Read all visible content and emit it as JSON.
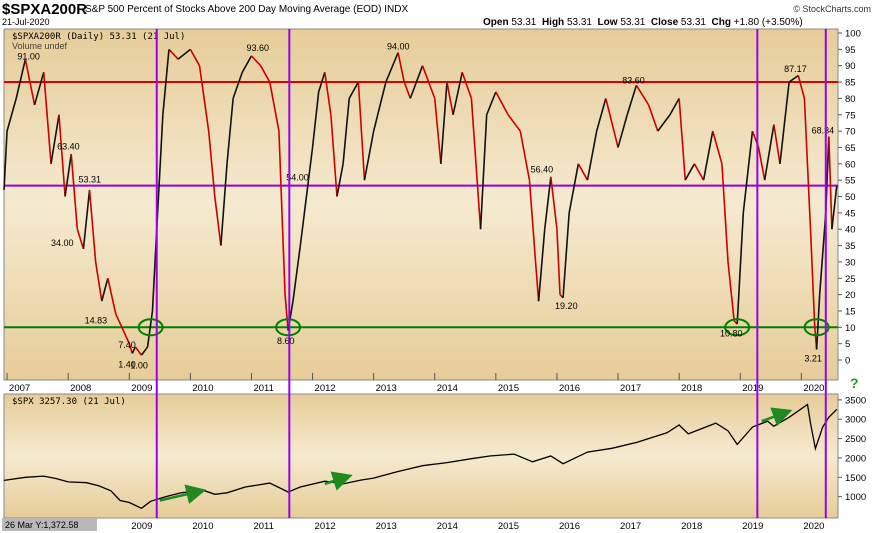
{
  "header": {
    "symbol": "$SPXA200R",
    "description": "S&P 500 Percent of Stocks Above 200 Day Moving Average (EOD)  INDX",
    "date": "21-Jul-2020",
    "quote": {
      "open_label": "Open",
      "open": "53.31",
      "high_label": "High",
      "high": "53.31",
      "low_label": "Low",
      "low": "53.31",
      "close_label": "Close",
      "close": "53.31",
      "chg_label": "Chg",
      "chg": "+1.80 (+3.50%)"
    },
    "brand": "© StockCharts.com",
    "trend_icon": "up-arrow-icon"
  },
  "colors": {
    "panel_bg": "#eedcb4",
    "panel_bg_outer": "#e6cc98",
    "line_red": "#cc0000",
    "hline_red": "#dd0000",
    "hline_purple": "#9900cc",
    "hline_green": "#008000",
    "vline_purple": "#9900ee",
    "arrow_green": "#1f8a1f",
    "question": "#1f9a1f"
  },
  "top_panel": {
    "legend": "$SPXA200R (Daily) 53.31 (21 Jul)",
    "legend2": "Volume undef",
    "y_ticks": [
      "100",
      "95",
      "90",
      "85",
      "80",
      "75",
      "70",
      "65",
      "60",
      "55",
      "50",
      "45",
      "40",
      "35",
      "30",
      "25",
      "20",
      "15",
      "10",
      "5",
      "0"
    ],
    "x_labels": [
      "2007",
      "2008",
      "2009",
      "2010",
      "2011",
      "2012",
      "2013",
      "2014",
      "2015",
      "2016",
      "2017",
      "2018",
      "2019",
      "2020"
    ],
    "question_mark": "?",
    "annotations": [
      "91.00",
      "63.40",
      "53.31",
      "34.00",
      "14.83",
      "7.40",
      "1.40",
      "1.00",
      "93.60",
      "54.00",
      "8.60",
      "94.00",
      "56.40",
      "19.20",
      "83.60",
      "10.80",
      "87.17",
      "68.34",
      "3.21"
    ]
  },
  "bottom_panel": {
    "legend": "$SPX 3257.30 (21 Jul)",
    "y_ticks": [
      "3500",
      "3000",
      "2500",
      "2000",
      "1500",
      "1000"
    ],
    "x_labels": [
      "2009",
      "2010",
      "2011",
      "2012",
      "2013",
      "2014",
      "2015",
      "2016",
      "2017",
      "2018",
      "2019",
      "2020"
    ],
    "footer": "26 Mar Y:1,372.58"
  },
  "chart_data": [
    {
      "type": "line",
      "title": "$SPXA200R (Daily) 53.31 (21 Jul)",
      "ylim": [
        -5,
        101
      ],
      "horizontal_lines": [
        85,
        53.31,
        10
      ],
      "vertical_line_dates": [
        "2009.45",
        "2011.62",
        "2019.28",
        "2020.40"
      ],
      "circled_points": [
        [
          2009.35,
          10
        ],
        [
          2011.6,
          10
        ],
        [
          2018.95,
          10
        ],
        [
          2020.25,
          10
        ]
      ],
      "series": [
        {
          "values": [
            [
              2006.95,
              52
            ],
            [
              2007.0,
              70
            ],
            [
              2007.15,
              80
            ],
            [
              2007.3,
              92
            ],
            [
              2007.45,
              78
            ],
            [
              2007.6,
              88
            ],
            [
              2007.72,
              60
            ],
            [
              2007.85,
              75
            ],
            [
              2007.95,
              50
            ],
            [
              2008.05,
              63
            ],
            [
              2008.15,
              40
            ],
            [
              2008.25,
              34
            ],
            [
              2008.35,
              52
            ],
            [
              2008.45,
              30
            ],
            [
              2008.55,
              18
            ],
            [
              2008.65,
              25
            ],
            [
              2008.78,
              14
            ],
            [
              2008.88,
              10
            ],
            [
              2009.0,
              5
            ],
            [
              2009.05,
              2
            ],
            [
              2009.1,
              4
            ],
            [
              2009.2,
              1.5
            ],
            [
              2009.3,
              4
            ],
            [
              2009.38,
              15
            ],
            [
              2009.45,
              40
            ],
            [
              2009.55,
              75
            ],
            [
              2009.65,
              95
            ],
            [
              2009.8,
              92
            ],
            [
              2010.0,
              95
            ],
            [
              2010.15,
              90
            ],
            [
              2010.3,
              70
            ],
            [
              2010.4,
              50
            ],
            [
              2010.5,
              35
            ],
            [
              2010.6,
              60
            ],
            [
              2010.7,
              80
            ],
            [
              2010.85,
              88
            ],
            [
              2011.0,
              93
            ],
            [
              2011.15,
              90
            ],
            [
              2011.3,
              85
            ],
            [
              2011.45,
              70
            ],
            [
              2011.55,
              20
            ],
            [
              2011.6,
              9
            ],
            [
              2011.68,
              18
            ],
            [
              2011.8,
              35
            ],
            [
              2011.9,
              50
            ],
            [
              2012.0,
              65
            ],
            [
              2012.1,
              82
            ],
            [
              2012.2,
              88
            ],
            [
              2012.3,
              75
            ],
            [
              2012.4,
              50
            ],
            [
              2012.5,
              60
            ],
            [
              2012.6,
              80
            ],
            [
              2012.75,
              85
            ],
            [
              2012.85,
              55
            ],
            [
              2013.0,
              70
            ],
            [
              2013.2,
              85
            ],
            [
              2013.4,
              94
            ],
            [
              2013.5,
              85
            ],
            [
              2013.6,
              80
            ],
            [
              2013.8,
              90
            ],
            [
              2014.0,
              80
            ],
            [
              2014.1,
              60
            ],
            [
              2014.2,
              85
            ],
            [
              2014.3,
              75
            ],
            [
              2014.45,
              88
            ],
            [
              2014.6,
              80
            ],
            [
              2014.75,
              40
            ],
            [
              2014.85,
              75
            ],
            [
              2015.0,
              82
            ],
            [
              2015.2,
              75
            ],
            [
              2015.4,
              70
            ],
            [
              2015.55,
              55
            ],
            [
              2015.65,
              30
            ],
            [
              2015.7,
              18
            ],
            [
              2015.8,
              40
            ],
            [
              2015.9,
              56
            ],
            [
              2016.0,
              40
            ],
            [
              2016.05,
              20
            ],
            [
              2016.1,
              19
            ],
            [
              2016.2,
              45
            ],
            [
              2016.35,
              60
            ],
            [
              2016.5,
              55
            ],
            [
              2016.65,
              70
            ],
            [
              2016.8,
              80
            ],
            [
              2017.0,
              65
            ],
            [
              2017.15,
              75
            ],
            [
              2017.3,
              84
            ],
            [
              2017.5,
              78
            ],
            [
              2017.65,
              70
            ],
            [
              2017.85,
              75
            ],
            [
              2018.0,
              80
            ],
            [
              2018.1,
              55
            ],
            [
              2018.25,
              60
            ],
            [
              2018.4,
              55
            ],
            [
              2018.55,
              70
            ],
            [
              2018.7,
              60
            ],
            [
              2018.8,
              30
            ],
            [
              2018.9,
              12
            ],
            [
              2018.95,
              11
            ],
            [
              2019.05,
              45
            ],
            [
              2019.2,
              70
            ],
            [
              2019.3,
              65
            ],
            [
              2019.4,
              55
            ],
            [
              2019.55,
              72
            ],
            [
              2019.65,
              60
            ],
            [
              2019.8,
              85
            ],
            [
              2019.95,
              87
            ],
            [
              2020.05,
              80
            ],
            [
              2020.15,
              40
            ],
            [
              2020.22,
              10
            ],
            [
              2020.25,
              3.21
            ],
            [
              2020.3,
              20
            ],
            [
              2020.4,
              45
            ],
            [
              2020.45,
              68.34
            ],
            [
              2020.5,
              40
            ],
            [
              2020.58,
              53.31
            ]
          ]
        }
      ]
    },
    {
      "type": "line",
      "title": "$SPX 3257.30 (21 Jul)",
      "ylim": [
        500,
        3600
      ],
      "series": [
        {
          "values": [
            [
              2006.95,
              1420
            ],
            [
              2007.3,
              1500
            ],
            [
              2007.6,
              1530
            ],
            [
              2007.8,
              1470
            ],
            [
              2008.0,
              1380
            ],
            [
              2008.3,
              1360
            ],
            [
              2008.5,
              1280
            ],
            [
              2008.7,
              1150
            ],
            [
              2008.85,
              900
            ],
            [
              2009.0,
              850
            ],
            [
              2009.2,
              700
            ],
            [
              2009.35,
              880
            ],
            [
              2009.6,
              1000
            ],
            [
              2009.85,
              1100
            ],
            [
              2010.2,
              1170
            ],
            [
              2010.4,
              1060
            ],
            [
              2010.6,
              1100
            ],
            [
              2010.9,
              1250
            ],
            [
              2011.3,
              1350
            ],
            [
              2011.6,
              1120
            ],
            [
              2011.8,
              1250
            ],
            [
              2012.2,
              1400
            ],
            [
              2012.5,
              1330
            ],
            [
              2012.8,
              1430
            ],
            [
              2013.0,
              1480
            ],
            [
              2013.4,
              1650
            ],
            [
              2013.8,
              1800
            ],
            [
              2014.2,
              1880
            ],
            [
              2014.6,
              1980
            ],
            [
              2014.9,
              2050
            ],
            [
              2015.3,
              2100
            ],
            [
              2015.6,
              1900
            ],
            [
              2015.9,
              2050
            ],
            [
              2016.1,
              1850
            ],
            [
              2016.5,
              2150
            ],
            [
              2016.9,
              2250
            ],
            [
              2017.3,
              2400
            ],
            [
              2017.8,
              2650
            ],
            [
              2018.0,
              2850
            ],
            [
              2018.15,
              2620
            ],
            [
              2018.6,
              2900
            ],
            [
              2018.8,
              2700
            ],
            [
              2018.95,
              2350
            ],
            [
              2019.2,
              2800
            ],
            [
              2019.45,
              2950
            ],
            [
              2019.55,
              2820
            ],
            [
              2019.8,
              3050
            ],
            [
              2020.1,
              3380
            ],
            [
              2020.15,
              2900
            ],
            [
              2020.23,
              2240
            ],
            [
              2020.35,
              2800
            ],
            [
              2020.45,
              3050
            ],
            [
              2020.58,
              3257
            ]
          ]
        }
      ]
    }
  ]
}
